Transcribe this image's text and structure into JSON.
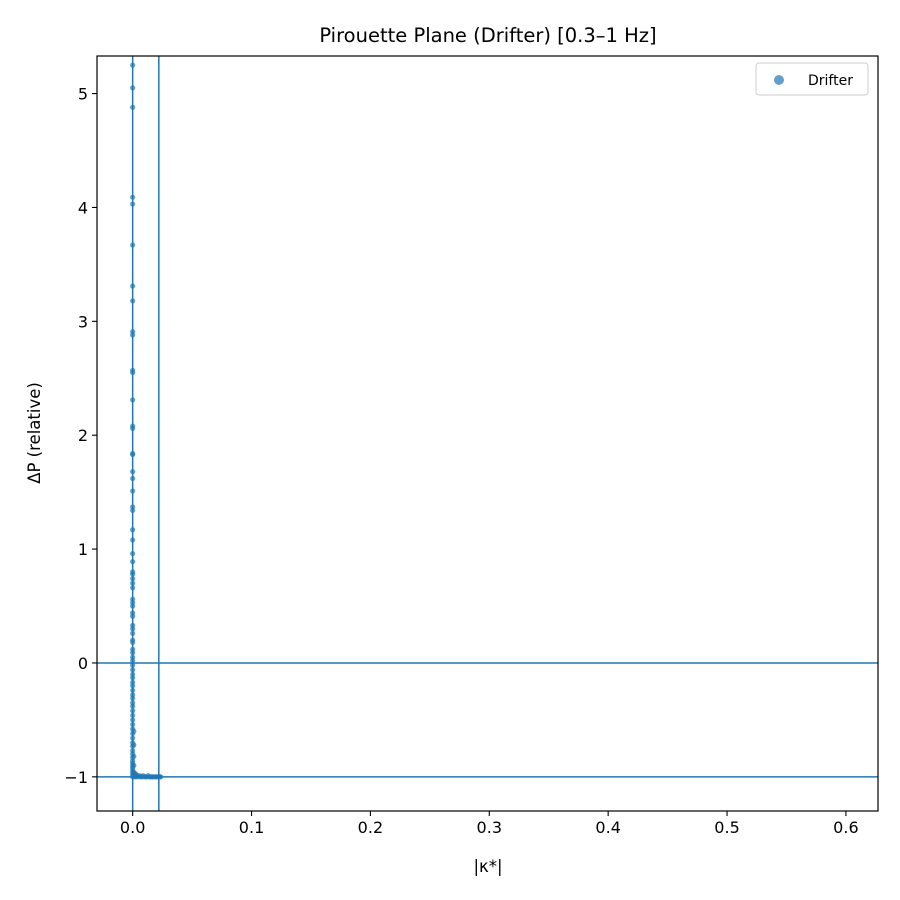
{
  "chart_data": {
    "type": "scatter",
    "title": "Pirouette Plane (Drifter)  [0.3–1 Hz]",
    "xlabel": "|κ*|",
    "ylabel": "ΔP (relative)",
    "xlim": [
      -0.03,
      0.627
    ],
    "ylim": [
      -1.3,
      5.33
    ],
    "xticks": [
      0.0,
      0.1,
      0.2,
      0.3,
      0.4,
      0.5,
      0.6
    ],
    "xtick_labels": [
      "0.0",
      "0.1",
      "0.2",
      "0.3",
      "0.4",
      "0.5",
      "0.6"
    ],
    "yticks": [
      -1,
      0,
      1,
      2,
      3,
      4,
      5
    ],
    "ytick_labels": [
      "−1",
      "0",
      "1",
      "2",
      "3",
      "4",
      "5"
    ],
    "grid": false,
    "legend_position": "top-right",
    "color": "#1f77b4",
    "reference_lines": {
      "horizontal": [
        0,
        -1
      ],
      "vertical": [
        0,
        0.022
      ]
    },
    "series": [
      {
        "name": "Drifter",
        "points": [
          [
            0.0,
            5.25
          ],
          [
            0.0,
            5.05
          ],
          [
            0.0,
            4.88
          ],
          [
            0.0,
            4.09
          ],
          [
            0.0,
            4.03
          ],
          [
            0.0,
            3.67
          ],
          [
            0.0,
            3.31
          ],
          [
            0.0,
            3.18
          ],
          [
            0.0,
            2.91
          ],
          [
            0.0,
            2.88
          ],
          [
            0.0,
            2.57
          ],
          [
            0.0,
            2.55
          ],
          [
            0.0,
            2.31
          ],
          [
            0.0,
            2.08
          ],
          [
            0.0,
            2.06
          ],
          [
            0.0,
            1.84
          ],
          [
            0.0,
            1.83
          ],
          [
            0.0,
            1.68
          ],
          [
            0.0,
            1.62
          ],
          [
            0.0,
            1.51
          ],
          [
            0.0,
            1.37
          ],
          [
            0.0,
            1.34
          ],
          [
            0.0,
            1.17
          ],
          [
            0.0,
            1.08
          ],
          [
            0.0,
            0.96
          ],
          [
            0.0,
            0.89
          ],
          [
            0.0,
            0.8
          ],
          [
            0.0,
            0.78
          ],
          [
            0.0,
            0.74
          ],
          [
            0.0,
            0.7
          ],
          [
            0.0,
            0.66
          ],
          [
            0.0,
            0.56
          ],
          [
            0.0,
            0.53
          ],
          [
            0.0,
            0.5
          ],
          [
            0.0,
            0.44
          ],
          [
            0.0,
            0.41
          ],
          [
            0.0,
            0.33
          ],
          [
            0.0,
            0.3
          ],
          [
            0.0,
            0.26
          ],
          [
            0.0,
            0.2
          ],
          [
            0.0,
            0.18
          ],
          [
            0.0,
            0.12
          ],
          [
            0.0,
            0.09
          ],
          [
            0.0,
            0.05
          ],
          [
            0.0,
            0.02
          ],
          [
            0.0,
            -0.02
          ],
          [
            0.0,
            -0.06
          ],
          [
            0.0,
            -0.1
          ],
          [
            0.0,
            -0.13
          ],
          [
            0.0,
            -0.17
          ],
          [
            0.0,
            -0.2
          ],
          [
            0.0,
            -0.24
          ],
          [
            0.0,
            -0.28
          ],
          [
            0.0,
            -0.31
          ],
          [
            0.0,
            -0.35
          ],
          [
            0.0,
            -0.38
          ],
          [
            0.0,
            -0.42
          ],
          [
            0.0,
            -0.46
          ],
          [
            0.0,
            -0.5
          ],
          [
            0.0,
            -0.54
          ],
          [
            0.0,
            -0.58
          ],
          [
            0.0,
            -0.62
          ],
          [
            0.0,
            -0.66
          ],
          [
            0.0,
            -0.7
          ],
          [
            0.0,
            -0.73
          ],
          [
            0.0,
            -0.77
          ],
          [
            0.0,
            -0.8
          ],
          [
            0.0,
            -0.83
          ],
          [
            0.0,
            -0.86
          ],
          [
            0.0,
            -0.88
          ],
          [
            0.0,
            -0.9
          ],
          [
            0.0,
            -0.92
          ],
          [
            0.0,
            -0.94
          ],
          [
            0.0,
            -0.96
          ],
          [
            0.0,
            -0.98
          ],
          [
            0.0,
            -1.0
          ],
          [
            0.001,
            -0.6
          ],
          [
            0.001,
            -0.72
          ],
          [
            0.001,
            -0.82
          ],
          [
            0.001,
            -0.9
          ],
          [
            0.001,
            -0.96
          ],
          [
            0.001,
            -0.99
          ],
          [
            0.002,
            -0.97
          ],
          [
            0.002,
            -0.99
          ],
          [
            0.002,
            -1.0
          ],
          [
            0.003,
            -0.98
          ],
          [
            0.003,
            -1.0
          ],
          [
            0.004,
            -0.99
          ],
          [
            0.005,
            -1.0
          ],
          [
            0.006,
            -0.99
          ],
          [
            0.007,
            -1.0
          ],
          [
            0.008,
            -1.0
          ],
          [
            0.009,
            -0.99
          ],
          [
            0.01,
            -1.0
          ],
          [
            0.011,
            -1.0
          ],
          [
            0.012,
            -1.0
          ],
          [
            0.013,
            -0.99
          ],
          [
            0.014,
            -1.0
          ],
          [
            0.015,
            -1.0
          ],
          [
            0.016,
            -1.0
          ],
          [
            0.017,
            -1.0
          ],
          [
            0.018,
            -1.0
          ],
          [
            0.019,
            -1.0
          ],
          [
            0.02,
            -1.0
          ],
          [
            0.021,
            -1.0
          ],
          [
            0.022,
            -1.0
          ],
          [
            0.023,
            -1.0
          ],
          [
            0.0235,
            -1.0
          ]
        ]
      }
    ]
  }
}
